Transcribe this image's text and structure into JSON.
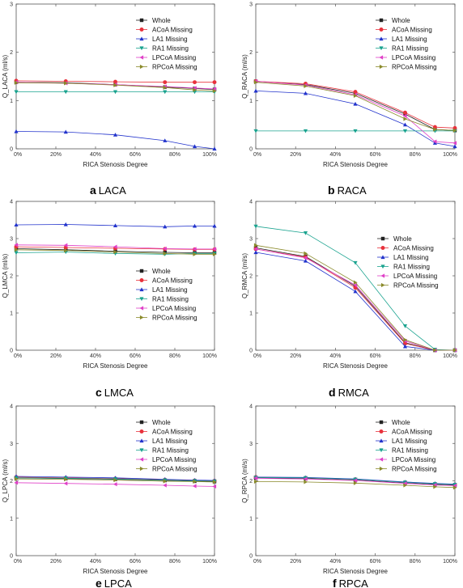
{
  "figure": {
    "panels": [
      {
        "letter": "a",
        "caption": "LACA",
        "legend_pos": "top-right"
      },
      {
        "letter": "b",
        "caption": "RACA",
        "legend_pos": "top-right"
      },
      {
        "letter": "c",
        "caption": "LMCA",
        "legend_pos": "bottom-right"
      },
      {
        "letter": "d",
        "caption": "RMCA",
        "legend_pos": "middle-right"
      },
      {
        "letter": "e",
        "caption": "LPCA",
        "legend_pos": "top-right"
      },
      {
        "letter": "f",
        "caption": "RPCA",
        "legend_pos": "top-right"
      }
    ]
  },
  "chart_data": [
    {
      "type": "line",
      "xlabel": "RICA Stenosis Degree",
      "ylabel": "Q_LACA (ml/s)",
      "x": [
        0,
        25,
        50,
        75,
        90,
        100
      ],
      "xticks": [
        "0%",
        "20%",
        "40%",
        "60%",
        "80%",
        "100%"
      ],
      "xlim": [
        0,
        100
      ],
      "ylim": [
        0,
        3
      ],
      "yticks": [
        0,
        1,
        2,
        3
      ],
      "series": [
        {
          "name": "Whole",
          "color": "#222222",
          "marker": "square",
          "values": [
            1.38,
            1.37,
            1.33,
            1.28,
            1.25,
            1.23
          ]
        },
        {
          "name": "ACoA Missing",
          "color": "#e8323c",
          "marker": "circle",
          "values": [
            1.41,
            1.4,
            1.39,
            1.38,
            1.38,
            1.38
          ]
        },
        {
          "name": "LA1 Missing",
          "color": "#2233cc",
          "marker": "triangle-up",
          "values": [
            0.36,
            0.35,
            0.29,
            0.17,
            0.05,
            0.0
          ]
        },
        {
          "name": "RA1 Missing",
          "color": "#1aa38f",
          "marker": "triangle-down",
          "values": [
            1.18,
            1.18,
            1.18,
            1.18,
            1.18,
            1.18
          ]
        },
        {
          "name": "LPCoA Missing",
          "color": "#e040c8",
          "marker": "triangle-left",
          "values": [
            1.38,
            1.36,
            1.33,
            1.29,
            1.26,
            1.24
          ]
        },
        {
          "name": "RPCoA Missing",
          "color": "#8a8a2a",
          "marker": "triangle-right",
          "values": [
            1.37,
            1.36,
            1.32,
            1.27,
            1.22,
            1.2
          ]
        }
      ]
    },
    {
      "type": "line",
      "xlabel": "RICA Stenosis Degree",
      "ylabel": "Q_RACA (ml/s)",
      "x": [
        0,
        25,
        50,
        75,
        90,
        100
      ],
      "xticks": [
        "0%",
        "20%",
        "40%",
        "60%",
        "80%",
        "100%"
      ],
      "xlim": [
        0,
        100
      ],
      "ylim": [
        0,
        3
      ],
      "yticks": [
        0,
        1,
        2,
        3
      ],
      "series": [
        {
          "name": "Whole",
          "color": "#222222",
          "marker": "square",
          "values": [
            1.4,
            1.33,
            1.15,
            0.72,
            0.4,
            0.38
          ]
        },
        {
          "name": "ACoA Missing",
          "color": "#e8323c",
          "marker": "circle",
          "values": [
            1.4,
            1.35,
            1.18,
            0.75,
            0.45,
            0.43
          ]
        },
        {
          "name": "LA1 Missing",
          "color": "#2233cc",
          "marker": "triangle-up",
          "values": [
            1.2,
            1.15,
            0.93,
            0.5,
            0.12,
            0.05
          ]
        },
        {
          "name": "RA1 Missing",
          "color": "#1aa38f",
          "marker": "triangle-down",
          "values": [
            0.37,
            0.37,
            0.37,
            0.37,
            0.37,
            0.37
          ]
        },
        {
          "name": "LPCoA Missing",
          "color": "#e040c8",
          "marker": "triangle-left",
          "values": [
            1.4,
            1.32,
            1.12,
            0.68,
            0.15,
            0.12
          ]
        },
        {
          "name": "RPCoA Missing",
          "color": "#8a8a2a",
          "marker": "triangle-right",
          "values": [
            1.38,
            1.3,
            1.1,
            0.62,
            0.4,
            0.38
          ]
        }
      ]
    },
    {
      "type": "line",
      "xlabel": "RICA Stenosis Degree",
      "ylabel": "Q_LMCA (ml/s)",
      "x": [
        0,
        25,
        50,
        75,
        90,
        100
      ],
      "xticks": [
        "0%",
        "20%",
        "40%",
        "60%",
        "80%",
        "100%"
      ],
      "xlim": [
        0,
        100
      ],
      "ylim": [
        0,
        4
      ],
      "yticks": [
        0,
        1,
        2,
        3,
        4
      ],
      "series": [
        {
          "name": "Whole",
          "color": "#222222",
          "marker": "square",
          "values": [
            2.73,
            2.7,
            2.66,
            2.63,
            2.62,
            2.62
          ]
        },
        {
          "name": "ACoA Missing",
          "color": "#e8323c",
          "marker": "circle",
          "values": [
            2.78,
            2.76,
            2.74,
            2.72,
            2.71,
            2.71
          ]
        },
        {
          "name": "LA1 Missing",
          "color": "#2233cc",
          "marker": "triangle-up",
          "values": [
            3.37,
            3.38,
            3.35,
            3.32,
            3.34,
            3.34
          ]
        },
        {
          "name": "RA1 Missing",
          "color": "#1aa38f",
          "marker": "triangle-down",
          "values": [
            2.62,
            2.64,
            2.6,
            2.58,
            2.6,
            2.6
          ]
        },
        {
          "name": "LPCoA Missing",
          "color": "#e040c8",
          "marker": "triangle-left",
          "values": [
            2.83,
            2.82,
            2.78,
            2.73,
            2.72,
            2.72
          ]
        },
        {
          "name": "RPCoA Missing",
          "color": "#8a8a2a",
          "marker": "triangle-right",
          "values": [
            2.7,
            2.68,
            2.64,
            2.6,
            2.58,
            2.58
          ]
        }
      ]
    },
    {
      "type": "line",
      "xlabel": "RICA Stenosis Degree",
      "ylabel": "Q_RMCA (ml/s)",
      "x": [
        0,
        25,
        50,
        75,
        90,
        100
      ],
      "xticks": [
        "0%",
        "20%",
        "40%",
        "60%",
        "80%",
        "100%"
      ],
      "xlim": [
        0,
        100
      ],
      "ylim": [
        0,
        4
      ],
      "yticks": [
        0,
        1,
        2,
        3,
        4
      ],
      "series": [
        {
          "name": "Whole",
          "color": "#222222",
          "marker": "square",
          "values": [
            2.75,
            2.52,
            1.72,
            0.2,
            0.0,
            0.0
          ]
        },
        {
          "name": "ACoA Missing",
          "color": "#e8323c",
          "marker": "circle",
          "values": [
            2.72,
            2.5,
            1.68,
            0.18,
            0.0,
            0.0
          ]
        },
        {
          "name": "LA1 Missing",
          "color": "#2233cc",
          "marker": "triangle-up",
          "values": [
            2.63,
            2.4,
            1.58,
            0.1,
            0.0,
            0.0
          ]
        },
        {
          "name": "RA1 Missing",
          "color": "#1aa38f",
          "marker": "triangle-down",
          "values": [
            3.33,
            3.15,
            2.35,
            0.65,
            0.02,
            0.0
          ]
        },
        {
          "name": "LPCoA Missing",
          "color": "#e040c8",
          "marker": "triangle-left",
          "values": [
            2.72,
            2.48,
            1.75,
            0.25,
            0.0,
            0.0
          ]
        },
        {
          "name": "RPCoA Missing",
          "color": "#8a8a2a",
          "marker": "triangle-right",
          "values": [
            2.82,
            2.6,
            1.82,
            0.28,
            0.0,
            0.0
          ]
        }
      ]
    },
    {
      "type": "line",
      "xlabel": "RICA Stenosis Degree",
      "ylabel": "Q_LPCA (ml/s)",
      "x": [
        0,
        25,
        50,
        75,
        90,
        100
      ],
      "xticks": [
        "0%",
        "20%",
        "40%",
        "60%",
        "80%",
        "100%"
      ],
      "xlim": [
        0,
        100
      ],
      "ylim": [
        0,
        4
      ],
      "yticks": [
        0,
        1,
        2,
        3,
        4
      ],
      "series": [
        {
          "name": "Whole",
          "color": "#222222",
          "marker": "square",
          "values": [
            2.08,
            2.06,
            2.04,
            2.01,
            1.99,
            1.98
          ]
        },
        {
          "name": "ACoA Missing",
          "color": "#e8323c",
          "marker": "circle",
          "values": [
            2.1,
            2.08,
            2.06,
            2.03,
            2.01,
            2.0
          ]
        },
        {
          "name": "LA1 Missing",
          "color": "#2233cc",
          "marker": "triangle-up",
          "values": [
            2.12,
            2.1,
            2.08,
            2.04,
            2.02,
            2.01
          ]
        },
        {
          "name": "RA1 Missing",
          "color": "#1aa38f",
          "marker": "triangle-down",
          "values": [
            2.08,
            2.07,
            2.05,
            2.02,
            2.0,
            1.99
          ]
        },
        {
          "name": "LPCoA Missing",
          "color": "#e040c8",
          "marker": "triangle-left",
          "values": [
            1.95,
            1.93,
            1.91,
            1.88,
            1.86,
            1.85
          ]
        },
        {
          "name": "RPCoA Missing",
          "color": "#8a8a2a",
          "marker": "triangle-right",
          "values": [
            2.05,
            2.04,
            2.02,
            1.99,
            1.98,
            1.97
          ]
        }
      ]
    },
    {
      "type": "line",
      "xlabel": "RICA Stenosis Degree",
      "ylabel": "Q_RPCA (ml/s)",
      "x": [
        0,
        25,
        50,
        75,
        90,
        100
      ],
      "xticks": [
        "0%",
        "20%",
        "40%",
        "60%",
        "80%",
        "100%"
      ],
      "xlim": [
        0,
        100
      ],
      "ylim": [
        0,
        4
      ],
      "yticks": [
        0,
        1,
        2,
        3,
        4
      ],
      "series": [
        {
          "name": "Whole",
          "color": "#222222",
          "marker": "square",
          "values": [
            2.08,
            2.06,
            2.02,
            1.94,
            1.9,
            1.88
          ]
        },
        {
          "name": "ACoA Missing",
          "color": "#e8323c",
          "marker": "circle",
          "values": [
            2.1,
            2.08,
            2.04,
            1.96,
            1.92,
            1.9
          ]
        },
        {
          "name": "LA1 Missing",
          "color": "#2233cc",
          "marker": "triangle-up",
          "values": [
            2.1,
            2.09,
            2.05,
            1.97,
            1.93,
            1.91
          ]
        },
        {
          "name": "RA1 Missing",
          "color": "#1aa38f",
          "marker": "triangle-down",
          "values": [
            2.09,
            2.08,
            2.04,
            1.96,
            1.92,
            1.9
          ]
        },
        {
          "name": "LPCoA Missing",
          "color": "#e040c8",
          "marker": "triangle-left",
          "values": [
            2.07,
            2.05,
            2.01,
            1.93,
            1.89,
            1.87
          ]
        },
        {
          "name": "RPCoA Missing",
          "color": "#8a8a2a",
          "marker": "triangle-right",
          "values": [
            1.98,
            1.97,
            1.94,
            1.88,
            1.84,
            1.82
          ]
        }
      ]
    }
  ]
}
